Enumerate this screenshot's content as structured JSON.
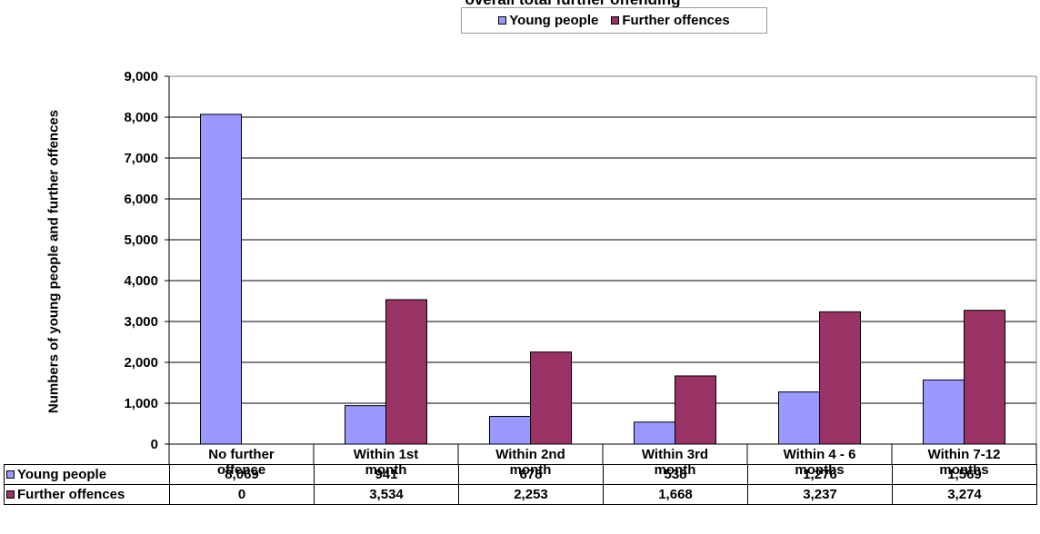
{
  "chart_data": {
    "type": "bar",
    "title": "overall total further offending",
    "ylabel": "Numbers of young people and further offences",
    "xlabel": "",
    "ylim": [
      0,
      9000
    ],
    "yticks": [
      "0",
      "1,000",
      "2,000",
      "3,000",
      "4,000",
      "5,000",
      "6,000",
      "7,000",
      "8,000",
      "9,000"
    ],
    "grid": true,
    "legend_position": "top-center",
    "categories": [
      [
        "No further",
        "offence"
      ],
      [
        "Within 1st",
        "month"
      ],
      [
        "Within 2nd",
        "month"
      ],
      [
        "Within 3rd",
        "month"
      ],
      [
        "Within 4 - 6",
        "months"
      ],
      [
        "Within 7-12",
        "months"
      ]
    ],
    "series": [
      {
        "name": "Young people",
        "color": "#9999ff",
        "values": [
          8069,
          941,
          678,
          538,
          1276,
          1569
        ],
        "labels": [
          "8,069",
          "941",
          "678",
          "538",
          "1,276",
          "1,569"
        ]
      },
      {
        "name": "Further offences",
        "color": "#993366",
        "values": [
          0,
          3534,
          2253,
          1668,
          3237,
          3274
        ],
        "labels": [
          "0",
          "3,534",
          "2,253",
          "1,668",
          "3,237",
          "3,274"
        ]
      }
    ]
  }
}
